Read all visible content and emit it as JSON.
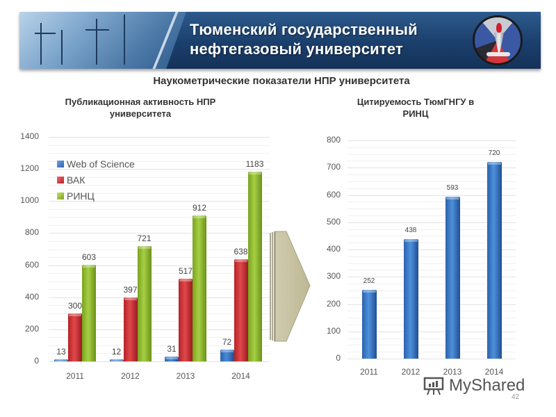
{
  "header": {
    "title_line1": "Тюменский государственный",
    "title_line2": "нефтегазовый университет",
    "logo_icon": "university-emblem"
  },
  "main_title": "Наукометрические показатели НПР университета",
  "left_chart": {
    "title_line1": "Публикационная активность НПР",
    "title_line2": "университета"
  },
  "right_chart": {
    "title_line1": "Цитируемость ТюмГНГУ в",
    "title_line2": "РИНЦ"
  },
  "arrow_icon": "chevron-arrow-right",
  "watermark": {
    "text": "MyShared",
    "icon": "presentation-board-icon"
  },
  "page_number": "42",
  "colors": {
    "banner": "#1b3f6c",
    "wos": "#3a7bd0",
    "vak": "#d23a3d",
    "rinc": "#92bf35",
    "citations": "#3a7bd0"
  },
  "chart_data": [
    {
      "type": "bar",
      "title": "Публикационная активность НПР университета",
      "categories": [
        "2011",
        "2012",
        "2013",
        "2014"
      ],
      "series": [
        {
          "name": "Web of Science",
          "values": [
            13,
            12,
            31,
            72
          ]
        },
        {
          "name": "ВАК",
          "values": [
            300,
            397,
            517,
            638
          ]
        },
        {
          "name": "РИНЦ",
          "values": [
            603,
            721,
            912,
            1183
          ]
        }
      ],
      "yticks": [
        "0",
        "200",
        "400",
        "600",
        "800",
        "1000",
        "1200",
        "1400"
      ],
      "ylim": [
        0,
        1400
      ],
      "xlabel": "",
      "ylabel": "",
      "legend_position": "top-left inside",
      "grid": true
    },
    {
      "type": "bar",
      "title": "Цитируемость ТюмГНГУ в РИНЦ",
      "categories": [
        "2011",
        "2012",
        "2013",
        "2014"
      ],
      "values": [
        252,
        438,
        593,
        720
      ],
      "yticks": [
        "0",
        "100",
        "200",
        "300",
        "400",
        "500",
        "600",
        "700",
        "800"
      ],
      "ylim": [
        0,
        800
      ],
      "xlabel": "",
      "ylabel": "",
      "grid": true
    }
  ]
}
